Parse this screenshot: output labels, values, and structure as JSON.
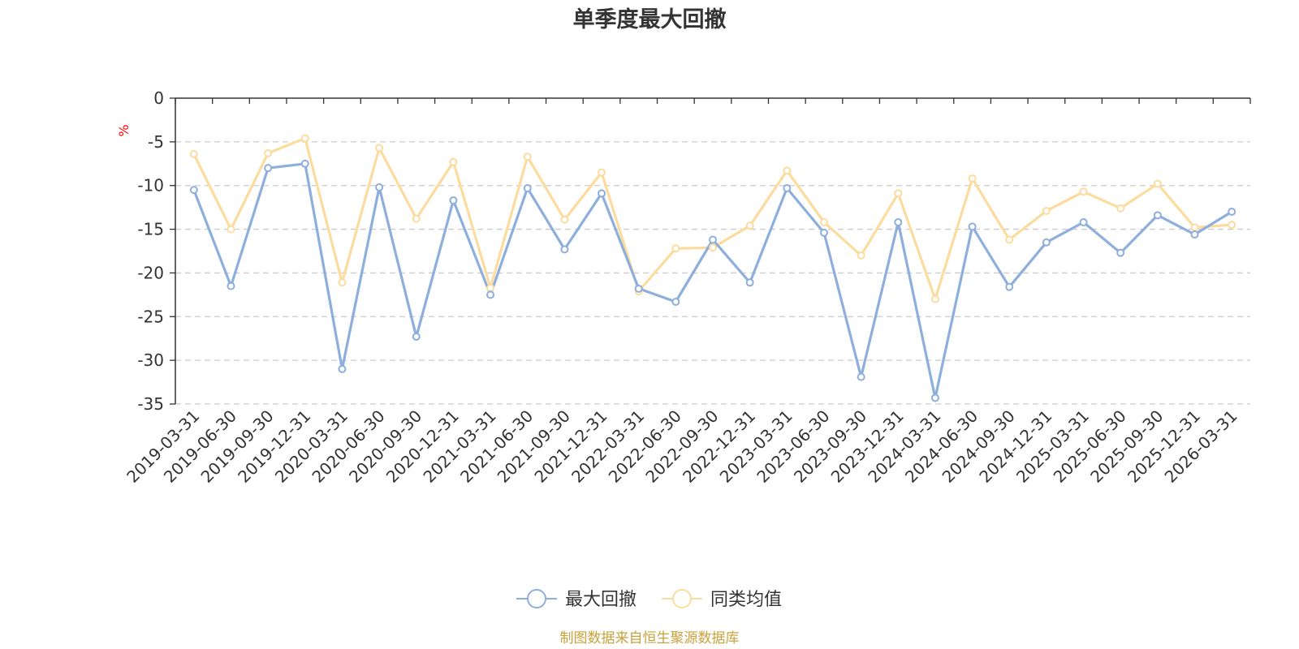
{
  "chart_data": {
    "type": "line",
    "title": "单季度最大回撤",
    "ylabel": "%",
    "ylim": [
      -35,
      0
    ],
    "yticks": [
      0,
      -5,
      -10,
      -15,
      -20,
      -25,
      -30,
      -35
    ],
    "grid": true,
    "legend_position": "bottom-center",
    "categories": [
      "2019-03-31",
      "2019-06-30",
      "2019-09-30",
      "2019-12-31",
      "2020-03-31",
      "2020-06-30",
      "2020-09-30",
      "2020-12-31",
      "2021-03-31",
      "2021-06-30",
      "2021-09-30",
      "2021-12-31",
      "2022-03-31",
      "2022-06-30",
      "2022-09-30",
      "2022-12-31",
      "2023-03-31",
      "2023-06-30",
      "2023-09-30",
      "2023-12-31",
      "2024-03-31",
      "2024-06-30",
      "2024-09-30",
      "2024-12-31",
      "2025-03-31",
      "2025-06-30",
      "2025-09-30",
      "2025-12-31",
      "2026-03-31"
    ],
    "series": [
      {
        "name": "最大回撤",
        "color": "#8eaedc",
        "values": [
          -10.5,
          -21.5,
          -8.0,
          -7.5,
          -31.0,
          -10.2,
          -27.3,
          -11.7,
          -22.5,
          -10.3,
          -17.3,
          -10.9,
          -21.8,
          -23.3,
          -16.2,
          -21.1,
          -10.3,
          -15.4,
          -31.9,
          -14.2,
          -34.3,
          -14.7,
          -21.6,
          -16.5,
          -14.2,
          -17.7,
          -13.4,
          -15.6,
          -13.0
        ]
      },
      {
        "name": "同类均值",
        "color": "#fcdc9e",
        "values": [
          -6.4,
          -15.0,
          -6.3,
          -4.6,
          -21.1,
          -5.7,
          -13.8,
          -7.3,
          -21.7,
          -6.7,
          -13.9,
          -8.5,
          -22.1,
          -17.2,
          -17.1,
          -14.6,
          -8.3,
          -14.2,
          -18.0,
          -10.9,
          -23.0,
          -9.2,
          -16.2,
          -12.9,
          -10.7,
          -12.6,
          -9.8,
          -14.8,
          -14.5
        ]
      }
    ]
  },
  "source_note": "制图数据来自恒生聚源数据库"
}
